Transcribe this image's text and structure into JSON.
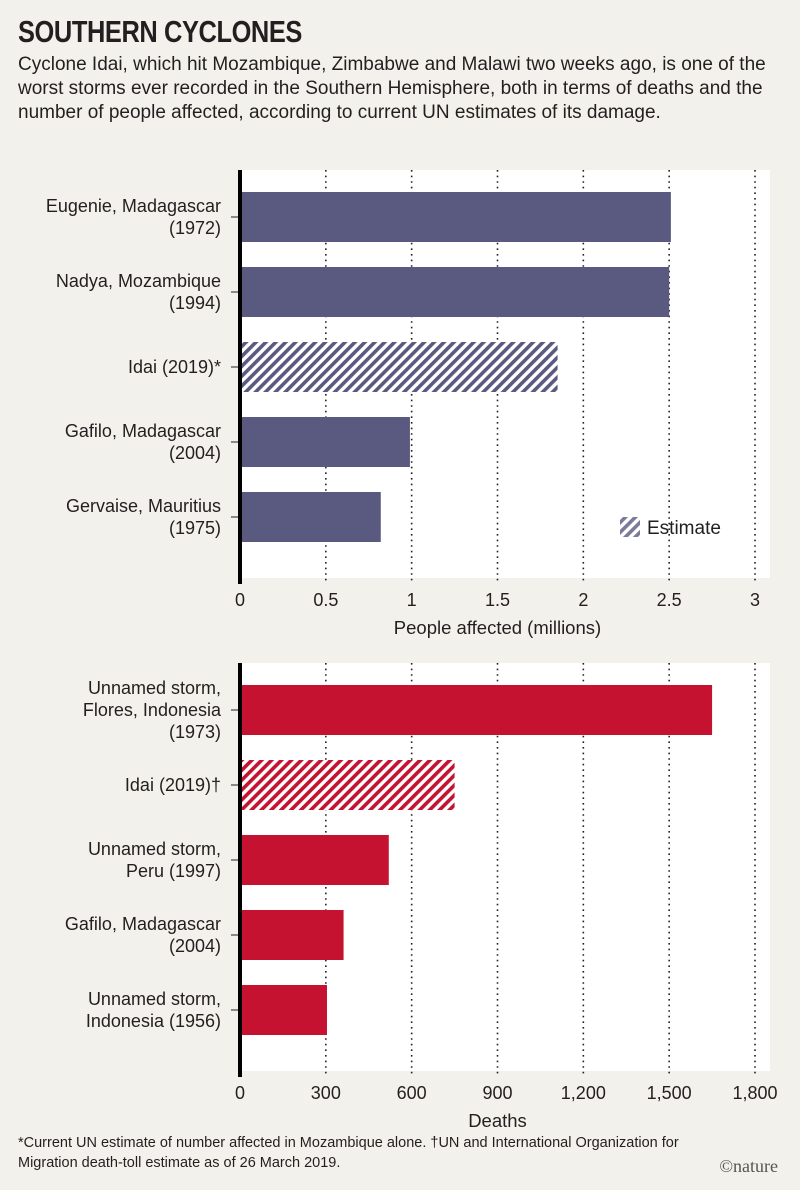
{
  "title": "SOUTHERN CYCLONES",
  "subtitle": "Cyclone Idai, which hit Mozambique, Zimbabwe and Malawi two weeks ago, is one of the worst storms ever recorded in the Southern Hemisphere, both in terms of deaths and the number of people affected, according to current UN estimates of its damage.",
  "footnote": "*Current UN estimate of number affected in Mozambique alone. †UN and International Organization for Migration death-toll estimate as of 26 March 2019.",
  "logo": "©nature",
  "colors": {
    "background": "#f3f1eb",
    "affected": "#5a5a80",
    "deaths": "#c41230"
  },
  "chart_data": [
    {
      "type": "bar",
      "orientation": "horizontal",
      "categories": [
        [
          "Eugenie, Madagascar",
          "(1972)"
        ],
        [
          "Nadya, Mozambique",
          "(1994)"
        ],
        [
          "Idai (2019)*"
        ],
        [
          "Gafilo, Madagascar",
          "(2004)"
        ],
        [
          "Gervaise, Mauritius",
          "(1975)"
        ]
      ],
      "values": [
        2.51,
        2.5,
        1.85,
        0.99,
        0.82
      ],
      "estimate": [
        false,
        false,
        true,
        false,
        false
      ],
      "xlabel": "People affected (millions)",
      "xlim": [
        0,
        3
      ],
      "ticks": [
        0,
        0.5,
        1,
        1.5,
        2,
        2.5,
        3
      ],
      "tick_labels": [
        "0",
        "0.5",
        "1",
        "1.5",
        "2",
        "2.5",
        "3"
      ],
      "grid": "vertical dotted",
      "legend": {
        "label": "Estimate",
        "placement": "bottom-right"
      },
      "color": "#5a5a80"
    },
    {
      "type": "bar",
      "orientation": "horizontal",
      "categories": [
        [
          "Unnamed storm,",
          "Flores, Indonesia",
          "(1973)"
        ],
        [
          "Idai (2019)†"
        ],
        [
          "Unnamed storm,",
          "Peru (1997)"
        ],
        [
          "Gafilo, Madagascar",
          "(2004)"
        ],
        [
          "Unnamed storm,",
          "Indonesia (1956)"
        ]
      ],
      "values": [
        1650,
        750,
        520,
        362,
        304
      ],
      "estimate": [
        false,
        true,
        false,
        false,
        false
      ],
      "xlabel": "Deaths",
      "xlim": [
        0,
        1800
      ],
      "ticks": [
        0,
        300,
        600,
        900,
        1200,
        1500,
        1800
      ],
      "tick_labels": [
        "0",
        "300",
        "600",
        "900",
        "1,200",
        "1,500",
        "1,800"
      ],
      "grid": "vertical dotted",
      "color": "#c41230"
    }
  ]
}
